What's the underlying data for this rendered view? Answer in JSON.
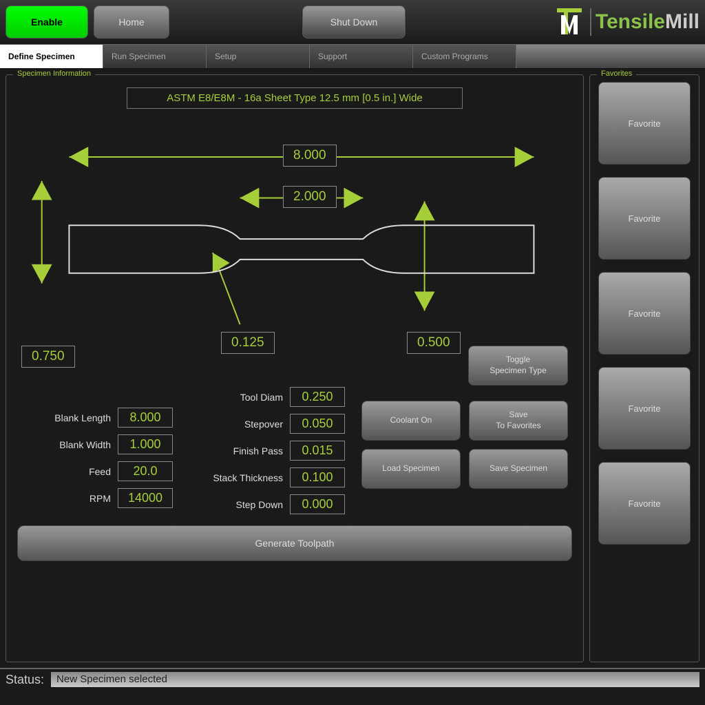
{
  "colors": {
    "accent": "#a6ce39",
    "enable_bg": "#00ff00",
    "panel_bg": "#1a1a1a"
  },
  "topbar": {
    "enable": "Enable",
    "home": "Home",
    "shutdown": "Shut Down"
  },
  "logo": {
    "part1": "Tensile",
    "part2": "Mill"
  },
  "tabs": {
    "define": "Define Specimen",
    "run": "Run Specimen",
    "setup": "Setup",
    "support": "Support",
    "custom": "Custom Programs"
  },
  "specimen": {
    "legend": "Specimen Information",
    "title": "ASTM E8/E8M - 16a Sheet Type 12.5 mm [0.5 in.] Wide",
    "dimensions": {
      "overall_length": "8.000",
      "gauge_length": "2.000",
      "grip_width": "0.750",
      "radius": "0.125",
      "reduced_width": "0.500"
    },
    "params_left": {
      "blank_length": {
        "label": "Blank Length",
        "value": "8.000"
      },
      "blank_width": {
        "label": "Blank Width",
        "value": "1.000"
      },
      "feed": {
        "label": "Feed",
        "value": "20.0"
      },
      "rpm": {
        "label": "RPM",
        "value": "14000"
      }
    },
    "params_right": {
      "tool_diam": {
        "label": "Tool Diam",
        "value": "0.250"
      },
      "stepover": {
        "label": "Stepover",
        "value": "0.050"
      },
      "finish_pass": {
        "label": "Finish Pass",
        "value": "0.015"
      },
      "stack_thickness": {
        "label": "Stack Thickness",
        "value": "0.100"
      },
      "step_down": {
        "label": "Step Down",
        "value": "0.000"
      }
    },
    "actions": {
      "toggle": "Toggle\nSpecimen Type",
      "coolant": "Coolant On",
      "save_fav": "Save\nTo Favorites",
      "load": "Load Specimen",
      "save": "Save Specimen",
      "generate": "Generate Toolpath"
    }
  },
  "favorites": {
    "legend": "Favorites",
    "items": [
      "Favorite",
      "Favorite",
      "Favorite",
      "Favorite",
      "Favorite"
    ]
  },
  "status": {
    "label": "Status:",
    "value": "New Specimen selected"
  }
}
